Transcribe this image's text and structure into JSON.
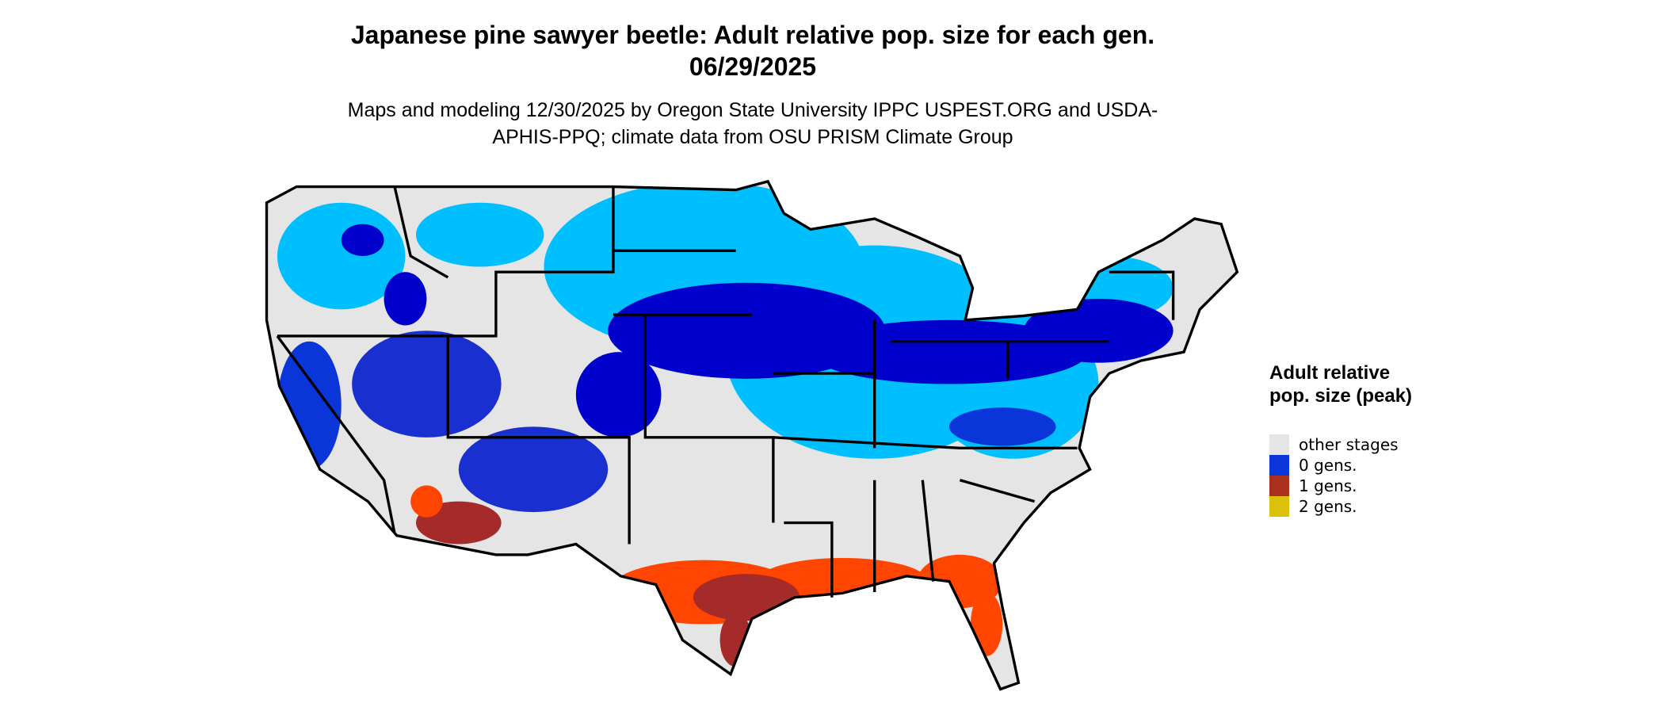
{
  "title": "Japanese pine sawyer beetle: Adult relative pop. size for each gen. 06/29/2025",
  "subtitle": "Maps and modeling 12/30/2025 by Oregon State University IPPC USPEST.ORG and USDA-APHIS-PPQ; climate data from OSU PRISM Climate Group",
  "legend": {
    "title": "Adult relative pop. size (peak)",
    "items": [
      {
        "label": "other stages",
        "color": "#e5e5e5"
      },
      {
        "label": "0 gens.",
        "color": "#0a36d9"
      },
      {
        "label": "1 gens.",
        "color": "#a8301c"
      },
      {
        "label": "2 gens.",
        "color": "#dcc10a"
      }
    ]
  }
}
